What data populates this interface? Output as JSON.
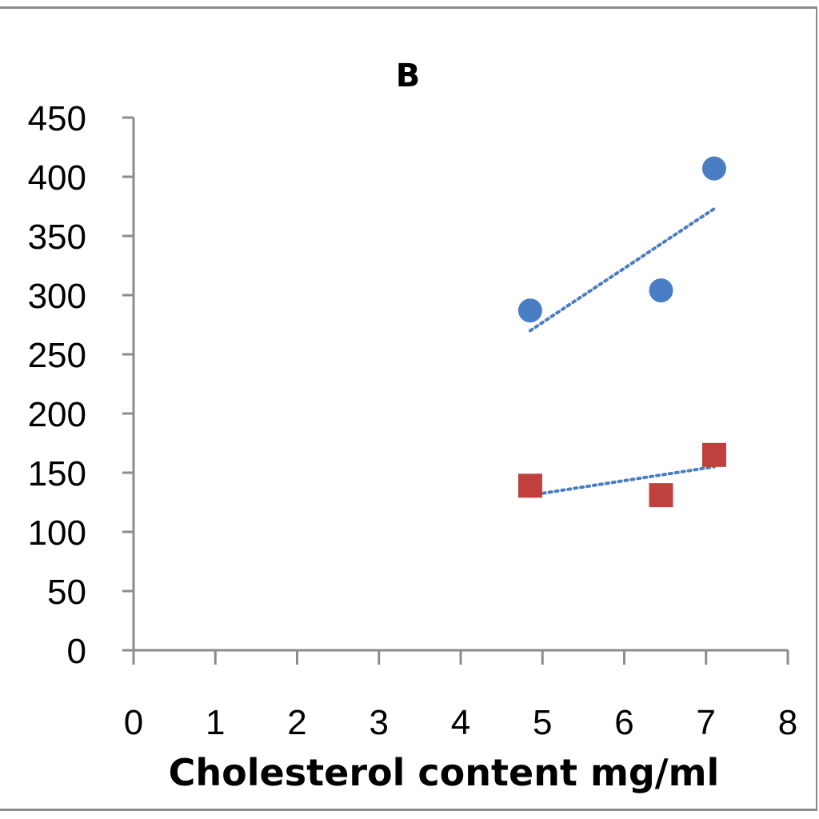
{
  "chart_data": {
    "type": "scatter",
    "title": "B",
    "xlabel": "Cholesterol content mg/ml",
    "ylabel": "",
    "xlim": [
      0,
      8
    ],
    "ylim": [
      0,
      450
    ],
    "x_ticks": [
      0,
      1,
      2,
      3,
      4,
      5,
      6,
      7,
      8
    ],
    "y_ticks": [
      0,
      50,
      100,
      150,
      200,
      250,
      300,
      350,
      400,
      450
    ],
    "grid": false,
    "legend": "none",
    "series": [
      {
        "marker": "circle",
        "color": "#4a7ec4",
        "x": [
          4.85,
          6.45,
          7.1
        ],
        "y": [
          287,
          304,
          407
        ],
        "trendline": {
          "style": "dotted",
          "color": "#4a7ec4",
          "x": [
            4.85,
            7.1
          ],
          "y": [
            270,
            373
          ]
        }
      },
      {
        "marker": "square",
        "color": "#c0403e",
        "x": [
          4.85,
          6.45,
          7.1
        ],
        "y": [
          139,
          131,
          165
        ],
        "trendline": {
          "style": "dotted",
          "color": "#4a7ec4",
          "x": [
            4.85,
            7.1
          ],
          "y": [
            131,
            155
          ]
        }
      }
    ]
  }
}
